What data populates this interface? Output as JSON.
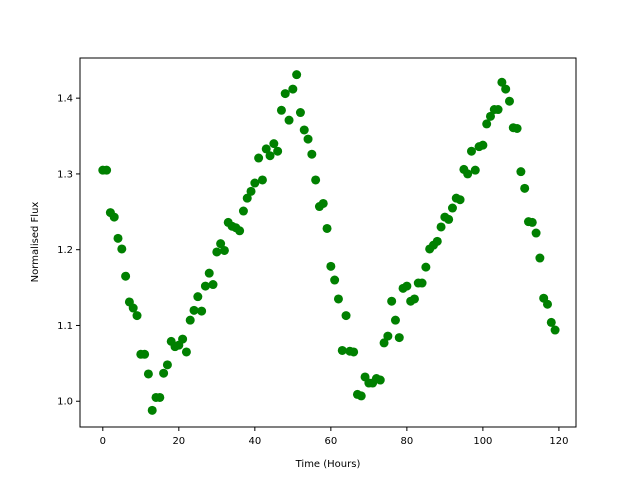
{
  "chart_data": {
    "type": "scatter",
    "title": "",
    "xlabel": "Time (Hours)",
    "ylabel": "Normalised Flux",
    "xlim": [
      -6,
      124.5
    ],
    "ylim": [
      0.966,
      1.453
    ],
    "xticks": [
      0,
      20,
      40,
      60,
      80,
      100,
      120
    ],
    "yticks": [
      1.0,
      1.1,
      1.2,
      1.3,
      1.4
    ],
    "grid": false,
    "marker_color": "#008000",
    "x": [
      0,
      1,
      2,
      3,
      4,
      5,
      6,
      7,
      8,
      9,
      10,
      11,
      12,
      13,
      14,
      15,
      16,
      17,
      18,
      19,
      20,
      21,
      22,
      23,
      24,
      25,
      26,
      27,
      28,
      29,
      30,
      31,
      32,
      33,
      34,
      35,
      36,
      37,
      38,
      39,
      40,
      41,
      42,
      43,
      44,
      45,
      46,
      47,
      48,
      49,
      50,
      51,
      52,
      53,
      54,
      55,
      56,
      57,
      58,
      59,
      60,
      61,
      62,
      63,
      64,
      65,
      66,
      67,
      68,
      69,
      70,
      71,
      72,
      73,
      74,
      75,
      76,
      77,
      78,
      79,
      80,
      81,
      82,
      83,
      84,
      85,
      86,
      87,
      88,
      89,
      90,
      91,
      92,
      93,
      94,
      95,
      96,
      97,
      98,
      99,
      100,
      101,
      102,
      103,
      104,
      105,
      106,
      107,
      108,
      109,
      110,
      111,
      112,
      113,
      114,
      115,
      116,
      117,
      118,
      119
    ],
    "y": [
      1.305,
      1.305,
      1.249,
      1.243,
      1.215,
      1.201,
      1.165,
      1.131,
      1.123,
      1.113,
      1.062,
      1.062,
      1.036,
      0.988,
      1.005,
      1.005,
      1.037,
      1.048,
      1.079,
      1.072,
      1.074,
      1.082,
      1.065,
      1.107,
      1.12,
      1.138,
      1.119,
      1.152,
      1.169,
      1.154,
      1.197,
      1.208,
      1.199,
      1.236,
      1.231,
      1.229,
      1.225,
      1.251,
      1.268,
      1.277,
      1.288,
      1.321,
      1.292,
      1.333,
      1.324,
      1.34,
      1.33,
      1.384,
      1.406,
      1.371,
      1.412,
      1.431,
      1.381,
      1.358,
      1.346,
      1.326,
      1.292,
      1.257,
      1.261,
      1.228,
      1.178,
      1.16,
      1.135,
      1.067,
      1.113,
      1.066,
      1.065,
      1.009,
      1.007,
      1.032,
      1.024,
      1.024,
      1.03,
      1.028,
      1.077,
      1.086,
      1.132,
      1.107,
      1.084,
      1.149,
      1.152,
      1.132,
      1.135,
      1.156,
      1.156,
      1.177,
      1.201,
      1.206,
      1.211,
      1.23,
      1.243,
      1.24,
      1.255,
      1.268,
      1.266,
      1.306,
      1.3,
      1.33,
      1.305,
      1.336,
      1.338,
      1.366,
      1.376,
      1.385,
      1.385,
      1.421,
      1.412,
      1.396,
      1.361,
      1.36,
      1.303,
      1.281,
      1.237,
      1.236,
      1.222,
      1.189,
      1.136,
      1.128,
      1.104,
      1.094
    ]
  }
}
